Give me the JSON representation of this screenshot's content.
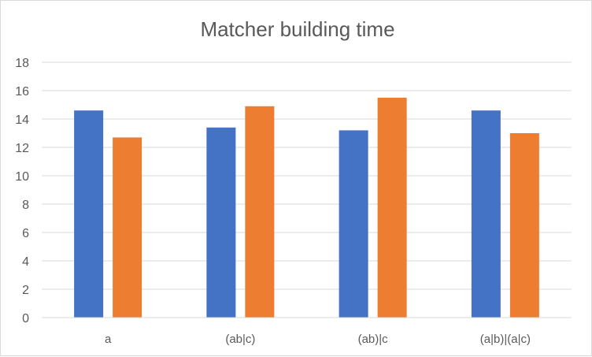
{
  "chart_data": {
    "type": "bar",
    "title": "Matcher building time",
    "xlabel": "",
    "ylabel": "",
    "categories": [
      "a",
      "(ab|c)",
      "(ab)|c",
      "(a|b)|(a|c)"
    ],
    "series": [
      {
        "color": "#4472C4",
        "values": [
          14.6,
          13.4,
          13.2,
          14.6
        ]
      },
      {
        "color": "#ED7D31",
        "values": [
          12.7,
          14.9,
          15.5,
          13.0
        ]
      }
    ],
    "ylim": [
      0,
      18
    ],
    "yticks": [
      "0",
      "2",
      "4",
      "6",
      "8",
      "10",
      "12",
      "14",
      "16",
      "18"
    ],
    "grid": true,
    "legend": "none"
  }
}
